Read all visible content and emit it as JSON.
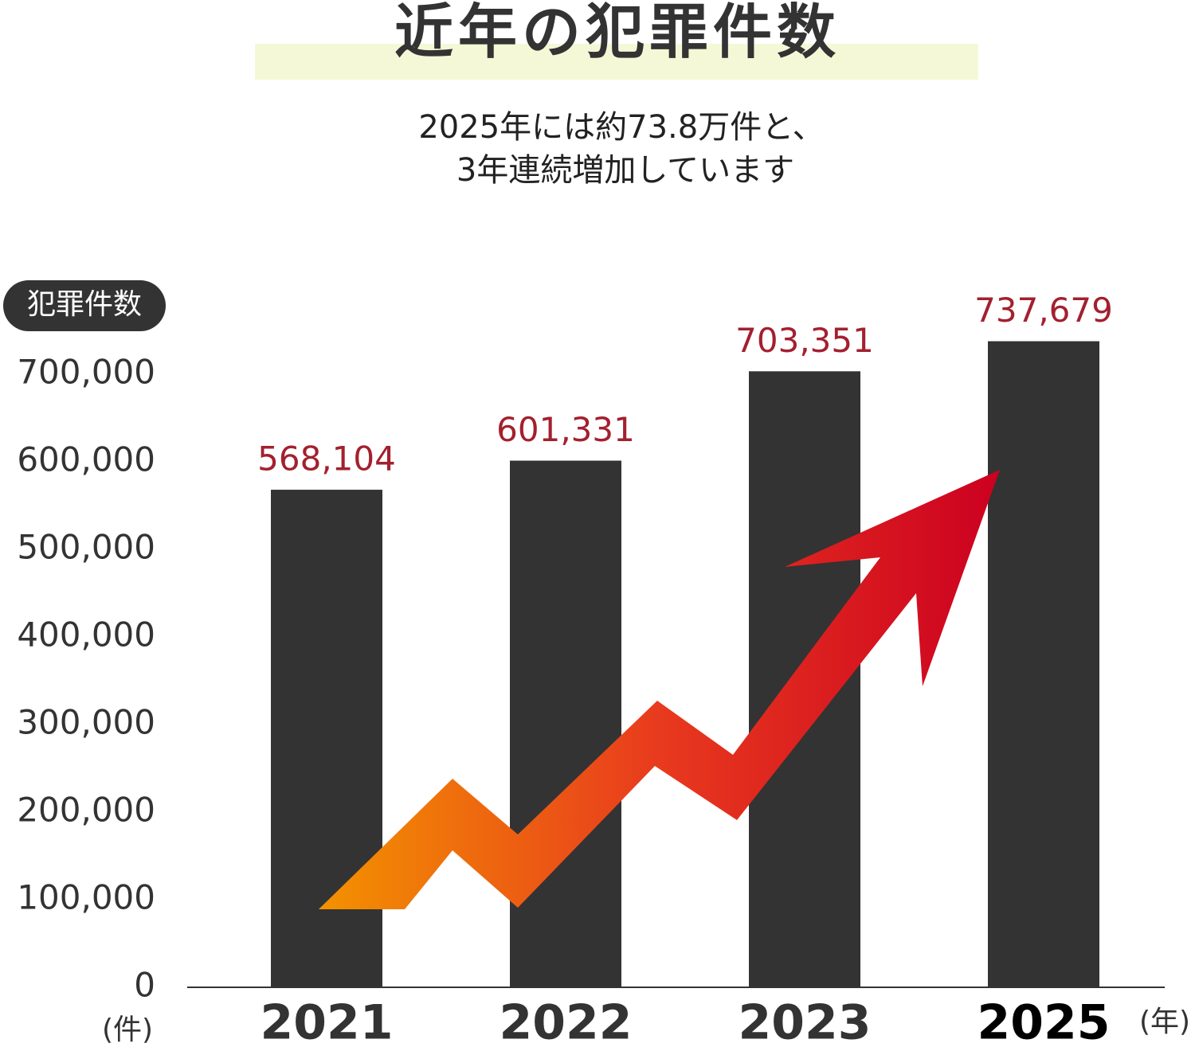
{
  "chart_data": {
    "type": "bar",
    "title": "近年の犯罪件数",
    "subtitle": [
      "2025年には約73.8万件と、",
      "3年連続増加しています"
    ],
    "y_label": "犯罪件数",
    "y_unit": "(件)",
    "x_unit": "(年)",
    "categories": [
      "2021",
      "2022",
      "2023",
      "2025"
    ],
    "values": [
      568104,
      601331,
      703351,
      737679
    ],
    "value_labels": [
      "568,104",
      "601,331",
      "703,351",
      "737,679"
    ],
    "color": "#333333",
    "label_color": "#a3202e",
    "ylim": [
      0,
      700000
    ],
    "yticks": [
      0,
      {
        "value": 100000,
        "label": "100,000"
      },
      {
        "value": 200000,
        "label": "200,000"
      },
      {
        "value": 300000,
        "label": "300,000"
      },
      {
        "value": 400000,
        "label": "400,000"
      },
      {
        "value": 500000,
        "label": "500,000"
      },
      {
        "value": 600000,
        "label": "600,000"
      },
      {
        "value": 700000,
        "label": "700,000"
      }
    ]
  }
}
